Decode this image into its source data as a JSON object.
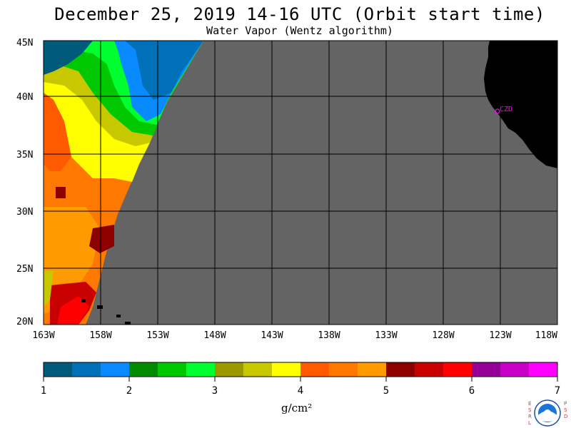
{
  "title": "December 25, 2019  14-16 UTC  (Orbit start time)",
  "subtitle": "Water Vapor (Wentz algorithm)",
  "map": {
    "lat_labels": [
      "45N",
      "40N",
      "35N",
      "30N",
      "25N",
      "20N"
    ],
    "lon_labels": [
      "163W",
      "158W",
      "153W",
      "148W",
      "143W",
      "138W",
      "133W",
      "128W",
      "123W",
      "118W"
    ],
    "station_label": "CZD",
    "colors": {
      "no_data": "#646464",
      "land": "#000000",
      "station": "#ff00ff"
    }
  },
  "colorbar": {
    "tick_labels": [
      "1",
      "2",
      "3",
      "4",
      "5",
      "6",
      "7"
    ],
    "unit": "g/cm²",
    "colors": [
      "#005a7a",
      "#0070b8",
      "#0a8aff",
      "#008c00",
      "#00c800",
      "#00ff30",
      "#9a9a00",
      "#c8c800",
      "#ffff00",
      "#ff5a00",
      "#ff7800",
      "#ff9a00",
      "#8c0000",
      "#c80000",
      "#ff0000",
      "#960096",
      "#c800c8",
      "#ff00ff"
    ]
  },
  "logo": {
    "left_letters": "ESRL",
    "right_letters": "PSD",
    "name": "NOAA"
  }
}
